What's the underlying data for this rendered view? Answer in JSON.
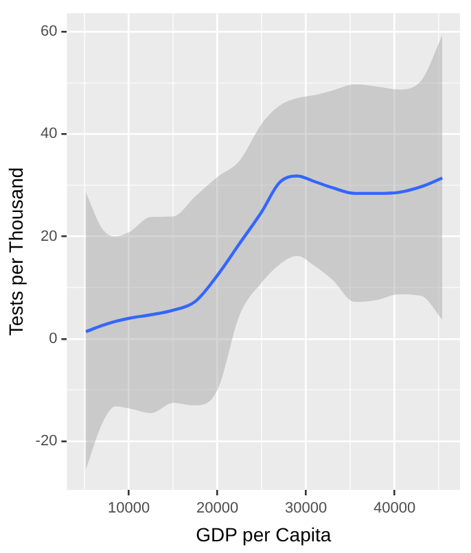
{
  "chart_data": {
    "type": "line",
    "xlabel": "GDP per Capita",
    "ylabel": "Tests per Thousand",
    "x": [
      5150,
      7000,
      8500,
      10000,
      12500,
      15000,
      17500,
      20000,
      22500,
      25000,
      27000,
      29000,
      31000,
      33000,
      35500,
      38000,
      40500,
      43000,
      45400
    ],
    "series": [
      {
        "color": "#3366ff",
        "values": [
          1.4,
          2.6,
          3.4,
          4.0,
          4.7,
          5.6,
          7.3,
          12.4,
          18.6,
          24.8,
          30.5,
          31.8,
          30.7,
          29.5,
          28.4,
          28.4,
          28.6,
          29.7,
          31.4
        ],
        "lower": [
          -25.5,
          -16.5,
          -13.2,
          -13.6,
          -14.5,
          -12.5,
          -13.0,
          -10.0,
          4.6,
          11.0,
          14.5,
          16.2,
          14.2,
          11.5,
          7.2,
          7.6,
          8.7,
          8.4,
          3.8
        ],
        "upper": [
          28.6,
          21.5,
          20.0,
          20.8,
          23.8,
          23.9,
          27.8,
          31.6,
          34.8,
          42.0,
          45.5,
          47.0,
          47.6,
          48.5,
          49.7,
          49.3,
          48.7,
          50.4,
          59.3
        ]
      }
    ],
    "xlim": [
      3000,
      47400
    ],
    "xticks": [
      {
        "value": 5000,
        "label": null
      },
      10000,
      {
        "value": 15000,
        "label": null
      },
      20000,
      {
        "value": 25000,
        "label": null
      },
      30000,
      {
        "value": 35000,
        "label": null
      },
      40000,
      {
        "value": 45000,
        "label": null
      }
    ],
    "ylim": [
      -29.5,
      63.6
    ],
    "yticks": [
      -20,
      {
        "value": -10,
        "label": null
      },
      0,
      {
        "value": 10,
        "label": null
      },
      20,
      {
        "value": 30,
        "label": null
      },
      40,
      {
        "value": 50,
        "label": null
      },
      60
    ],
    "grid": true,
    "legend": false,
    "marker": "none",
    "line_style": "solid"
  }
}
